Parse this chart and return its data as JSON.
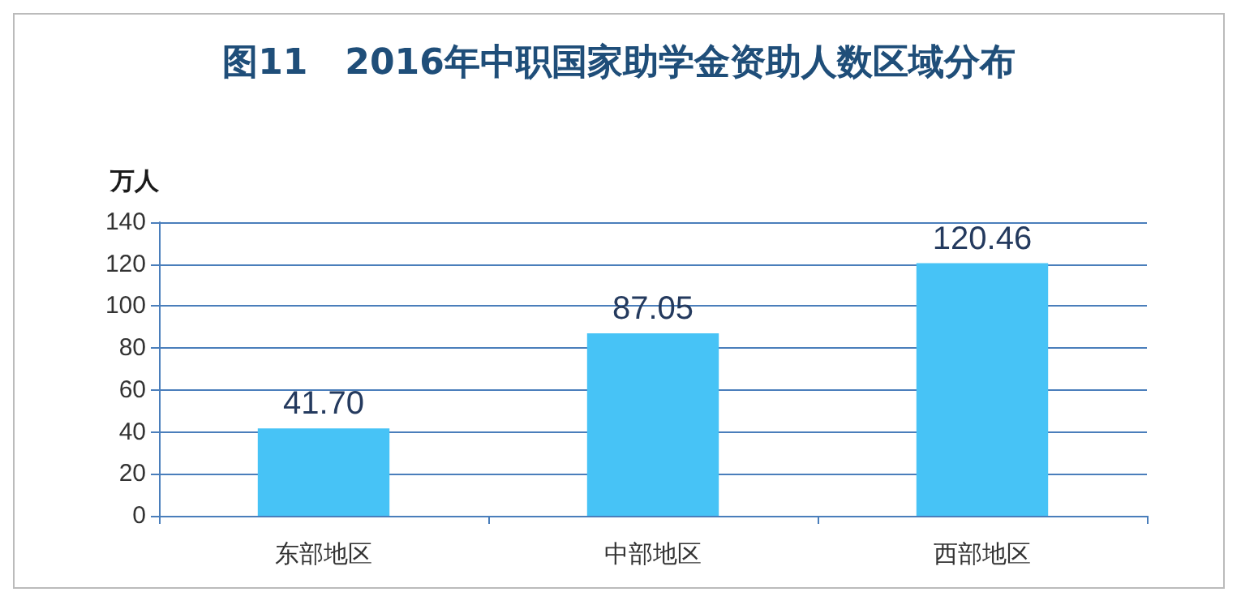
{
  "chart_data": {
    "type": "bar",
    "title": "图11   2016年中职国家助学金资助人数区域分布",
    "ylabel": "万人",
    "categories": [
      "东部地区",
      "中部地区",
      "西部地区"
    ],
    "values": [
      41.7,
      87.05,
      120.46
    ],
    "value_labels": [
      "41.70",
      "87.05",
      "120.46"
    ],
    "color": "#47c3f6",
    "ylim": [
      0,
      140
    ],
    "yticks": [
      0,
      20,
      40,
      60,
      80,
      100,
      120,
      140
    ],
    "grid": "y"
  }
}
